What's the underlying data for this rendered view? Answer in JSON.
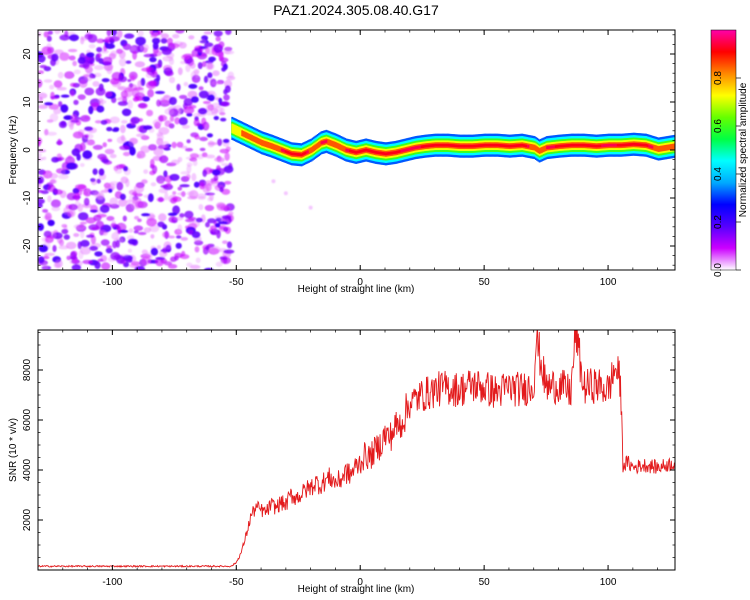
{
  "title": "PAZ1.2024.305.08.40.G17",
  "chart_data": [
    {
      "type": "heatmap",
      "title": "PAZ1.2024.305.08.40.G17",
      "xlabel": "Height of straight line (km)",
      "ylabel": "Frequency (Hz)",
      "xlim": [
        -130,
        127
      ],
      "ylim": [
        -25,
        25
      ],
      "xticks": [
        -100,
        -50,
        0,
        50,
        100
      ],
      "yticks": [
        -20,
        -10,
        0,
        10,
        20
      ],
      "colorbar": {
        "label": "Normalized spectral amplitude",
        "range": [
          0,
          1
        ],
        "ticks": [
          0.0,
          0.2,
          0.4,
          0.6,
          0.8
        ],
        "colors": [
          "#ffffff",
          "#cc00ff",
          "#5500ff",
          "#0000ff",
          "#00aaff",
          "#00ffff",
          "#00ff44",
          "#66ff00",
          "#ffff00",
          "#ff8800",
          "#ff0000",
          "#ff00aa"
        ]
      },
      "noise_region": {
        "x_range": [
          -130,
          -52
        ],
        "frequency_range": [
          -25,
          25
        ]
      },
      "signal_ridge": {
        "x": [
          -52,
          -48,
          -44,
          -40,
          -36,
          -32,
          -28,
          -24,
          -20,
          -16,
          -14,
          -10,
          -6,
          -2,
          2,
          6,
          10,
          14,
          18,
          22,
          26,
          30,
          35,
          40,
          45,
          50,
          55,
          60,
          65,
          70,
          72,
          75,
          80,
          85,
          90,
          95,
          100,
          105,
          110,
          115,
          120,
          127
        ],
        "frequency": [
          4.5,
          3.5,
          2.5,
          1.5,
          0.8,
          0.0,
          -0.8,
          -1.0,
          0.0,
          1.5,
          1.8,
          1.0,
          0.0,
          -0.5,
          0.0,
          -0.5,
          -0.8,
          -0.5,
          0.0,
          0.5,
          0.8,
          1.0,
          1.0,
          0.8,
          0.8,
          1.0,
          1.0,
          0.8,
          1.0,
          0.5,
          -0.2,
          0.5,
          0.8,
          1.0,
          1.0,
          0.8,
          1.0,
          1.0,
          1.2,
          1.0,
          0.2,
          0.8
        ],
        "amplitude": [
          0.75,
          0.8,
          0.85,
          0.85,
          0.8,
          0.9,
          1.0,
          1.0,
          0.85,
          0.9,
          0.9,
          0.85,
          0.9,
          1.0,
          0.95,
          1.0,
          1.0,
          0.95,
          0.9,
          0.9,
          0.95,
          1.0,
          1.0,
          1.0,
          1.0,
          1.0,
          1.0,
          1.0,
          1.0,
          0.8,
          0.8,
          0.9,
          0.95,
          0.95,
          0.95,
          0.95,
          0.9,
          0.95,
          0.95,
          0.95,
          0.85,
          0.9
        ]
      }
    },
    {
      "type": "line",
      "xlabel": "Height of straight line (km)",
      "ylabel": "SNR (10 * v/v)",
      "xlim": [
        -130,
        127
      ],
      "ylim": [
        0,
        9600
      ],
      "xticks": [
        -100,
        -50,
        0,
        50,
        100
      ],
      "yticks": [
        2000,
        4000,
        6000,
        8000
      ],
      "color": "#e31a1c",
      "series": [
        {
          "x": [
            -130,
            -120,
            -110,
            -100,
            -90,
            -80,
            -70,
            -60,
            -52,
            -50,
            -48,
            -46,
            -45,
            -44,
            -42,
            -40,
            -38,
            -36,
            -34,
            -32,
            -30,
            -28,
            -26,
            -24,
            -22,
            -20,
            -18,
            -16,
            -14,
            -12,
            -10,
            -8,
            -6,
            -4,
            -2,
            0,
            2,
            4,
            6,
            8,
            10,
            12,
            14,
            16,
            18,
            20,
            22,
            25,
            28,
            30,
            35,
            40,
            45,
            50,
            55,
            60,
            65,
            70,
            71,
            75,
            80,
            85,
            87,
            90,
            95,
            100,
            103,
            105,
            106,
            108,
            110,
            115,
            120,
            127
          ],
          "y": [
            150,
            150,
            150,
            150,
            150,
            150,
            150,
            150,
            150,
            300,
            700,
            1400,
            1800,
            2200,
            2500,
            2400,
            2300,
            2600,
            2500,
            2700,
            2600,
            3000,
            2900,
            3000,
            3200,
            3300,
            3500,
            3400,
            3600,
            3700,
            3500,
            3600,
            3900,
            3800,
            4100,
            4300,
            4600,
            4500,
            4800,
            5000,
            5400,
            5300,
            5700,
            5800,
            6200,
            6700,
            6800,
            7000,
            7100,
            7200,
            7300,
            7200,
            7400,
            7300,
            7100,
            7300,
            7200,
            7400,
            9300,
            7300,
            7400,
            7100,
            9600,
            7300,
            7400,
            7200,
            8100,
            7500,
            4200,
            4300,
            4100,
            4200,
            4100,
            4300
          ]
        }
      ]
    }
  ]
}
